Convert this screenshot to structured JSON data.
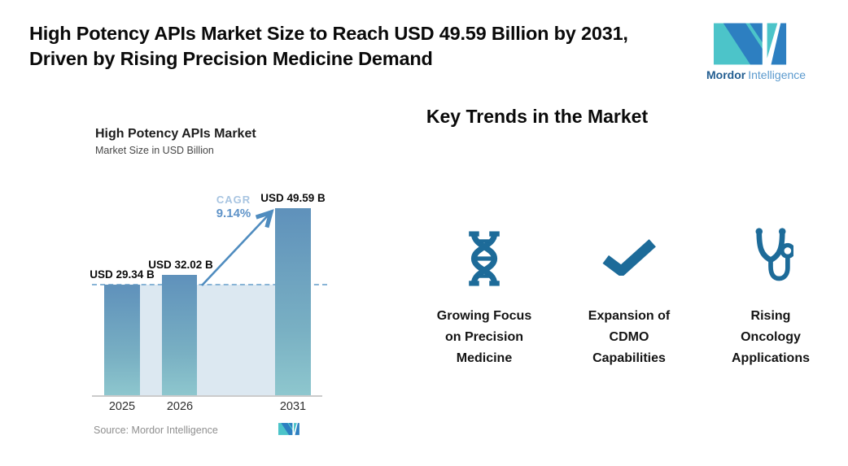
{
  "header": {
    "title_line1": "High Potency APIs Market Size to Reach USD 49.59 Billion by 2031,",
    "title_line2": "Driven by Rising Precision Medicine Demand",
    "brand": {
      "name_bold": "Mordor",
      "name_light": "Intelligence"
    }
  },
  "chart": {
    "title": "High Potency APIs Market",
    "subtitle": "Market Size in USD Billion",
    "cagr_label": "CAGR",
    "cagr_value": "9.14%",
    "source": "Source: Mordor Intelligence"
  },
  "chart_data": {
    "type": "bar",
    "title": "High Potency APIs Market",
    "ylabel": "Market Size in USD Billion",
    "categories": [
      "2025",
      "2026",
      "2031"
    ],
    "values": [
      29.34,
      32.02,
      49.59
    ],
    "bar_labels": [
      "USD 29.34 B",
      "USD 32.02 B",
      "USD 49.59 B"
    ],
    "ylim": [
      0,
      55
    ],
    "grid": false,
    "annotations": {
      "cagr_label": "CAGR",
      "cagr_value": "9.14%",
      "reference_line_value": 29.34
    }
  },
  "trends": {
    "heading": "Key Trends in the Market",
    "items": [
      {
        "icon": "dna-icon",
        "lines": [
          "Growing Focus",
          "on Precision",
          "Medicine"
        ]
      },
      {
        "icon": "checkmark-icon",
        "lines": [
          "Expansion of",
          "CDMO",
          "Capabilities"
        ]
      },
      {
        "icon": "stethoscope-icon",
        "lines": [
          "Rising",
          "Oncology",
          "Applications"
        ]
      }
    ]
  },
  "colors": {
    "brand_blue": "#2d7fc1",
    "brand_teal": "#4cc4c9",
    "icon_blue": "#1d6b99",
    "bar_top": "#5f91bb",
    "bar_bottom": "#8ec7ce",
    "band_fill": "#dce8f1",
    "dashed_line": "#88b4d6",
    "cagr_label_color": "#a7c4e1",
    "cagr_value_color": "#5f93c8",
    "arrow_color": "#4f8cbf"
  }
}
